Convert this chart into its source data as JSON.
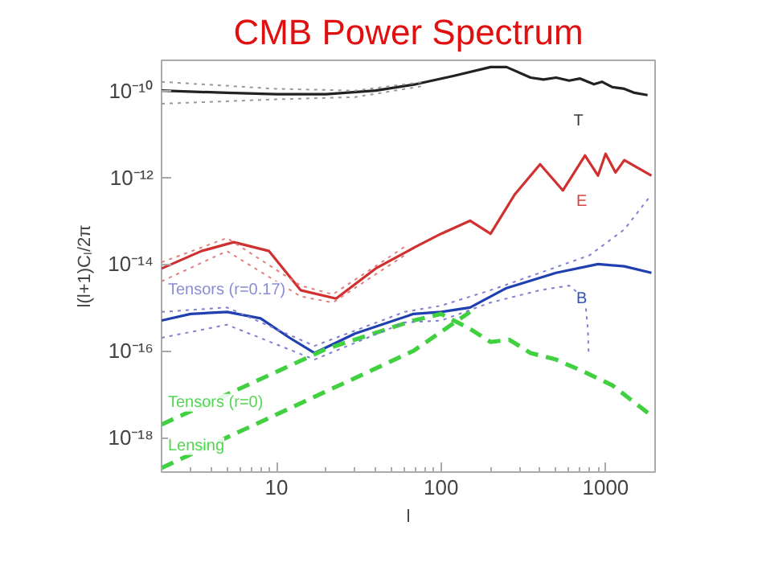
{
  "chart_data": {
    "type": "line",
    "title": "CMB Power Spectrum",
    "xlabel": "l",
    "ylabel": "l(l+1)Cₗ/2π",
    "log": "xy",
    "grid": false,
    "legend": false,
    "xlim": [
      2,
      2000
    ],
    "ylim": [
      1.6e-19,
      5e-10
    ],
    "xticks": [
      10,
      100,
      1000
    ],
    "yticks": [
      {
        "value": 1e-10,
        "label": "10⁻¹⁰"
      },
      {
        "value": 1e-12,
        "label": "10⁻¹²"
      },
      {
        "value": 1e-14,
        "label": "10⁻¹⁴"
      },
      {
        "value": 1e-16,
        "label": "10⁻¹⁶"
      },
      {
        "value": 1e-18,
        "label": "10⁻¹⁸"
      }
    ],
    "series": [
      {
        "name": "T",
        "color": "#222222",
        "line_style": "solid",
        "x": [
          2,
          5,
          10,
          20,
          40,
          70,
          120,
          200,
          250,
          350,
          420,
          500,
          600,
          700,
          850,
          950,
          1100,
          1300,
          1500,
          1800
        ],
        "values": [
          1e-10,
          8.9e-11,
          8.3e-11,
          8.3e-11,
          1e-10,
          1.4e-10,
          2.2e-10,
          3.5e-10,
          3.5e-10,
          2e-10,
          1.8e-10,
          2e-10,
          1.7e-10,
          1.9e-10,
          1.4e-10,
          1.6e-10,
          1.2e-10,
          1.1e-10,
          8.9e-11,
          7.9e-11
        ]
      },
      {
        "name": "E",
        "color": "#d03030",
        "line_style": "solid",
        "x": [
          2,
          3.5,
          5.5,
          9,
          14,
          23,
          40,
          70,
          100,
          150,
          200,
          280,
          400,
          550,
          750,
          900,
          1000,
          1150,
          1300,
          1900
        ],
        "values": [
          7.9e-15,
          2e-14,
          3.2e-14,
          2e-14,
          2.5e-15,
          1.6e-15,
          7.9e-15,
          2.5e-14,
          5e-14,
          1e-13,
          5e-14,
          4e-13,
          2e-12,
          5e-13,
          3.2e-12,
          1.1e-12,
          3.5e-12,
          1.3e-12,
          2.5e-12,
          1.1e-12
        ]
      },
      {
        "name": "B",
        "color": "#2040b0",
        "line_style": "solid",
        "x": [
          2,
          3,
          5,
          8,
          12,
          17,
          30,
          68,
          100,
          150,
          250,
          500,
          900,
          1300,
          1900
        ],
        "values": [
          5e-16,
          7.1e-16,
          7.9e-16,
          5.6e-16,
          2e-16,
          8.9e-17,
          2.5e-16,
          7.1e-16,
          7.9e-16,
          1e-15,
          2.8e-15,
          6.3e-15,
          1e-14,
          8.9e-15,
          6.3e-15
        ]
      },
      {
        "name": "Tensors (r=0)",
        "color": "#40d040",
        "line_style": "dashed",
        "x": [
          2,
          20,
          68,
          100,
          150,
          200,
          260,
          350,
          500,
          750,
          1100,
          1900
        ],
        "values": [
          2e-18,
          1.1e-16,
          5e-16,
          7.1e-16,
          3.2e-16,
          1.6e-16,
          1.8e-16,
          8.9e-17,
          6.3e-17,
          3.2e-17,
          1.6e-17,
          3.2e-18
        ]
      },
      {
        "name": "Lensing",
        "color": "#40d040",
        "line_style": "dashed",
        "x": [
          2,
          68,
          150
        ],
        "values": [
          2e-19,
          1e-16,
          7.9e-16
        ]
      },
      {
        "color": "#999999",
        "line_style": "dotted",
        "x": [
          2,
          10,
          30,
          80
        ],
        "values": [
          1.6e-10,
          1.1e-10,
          1e-10,
          1.6e-10
        ]
      },
      {
        "color": "#999999",
        "line_style": "dotted",
        "x": [
          2,
          10,
          30,
          80
        ],
        "values": [
          5e-11,
          6.3e-11,
          7.1e-11,
          1.3e-10
        ]
      },
      {
        "color": "#e08080",
        "line_style": "dotted",
        "x": [
          2,
          5,
          14,
          22,
          60
        ],
        "values": [
          1.1e-14,
          4e-14,
          3.2e-15,
          2e-15,
          2.5e-14
        ]
      },
      {
        "color": "#e08080",
        "line_style": "dotted",
        "x": [
          2,
          5,
          14,
          22,
          60
        ],
        "values": [
          4e-15,
          2e-14,
          1.8e-15,
          1.3e-15,
          1.6e-14
        ]
      },
      {
        "name": "Tensors (r=0.17)",
        "color": "#8080d0",
        "line_style": "dotted",
        "x": [
          2,
          5,
          17,
          60,
          100,
          200,
          400,
          800,
          1300,
          1900
        ],
        "values": [
          7.9e-16,
          1e-15,
          1.3e-16,
          7.9e-16,
          1.1e-15,
          2.5e-15,
          6.3e-15,
          1.6e-14,
          6.3e-14,
          4e-13
        ]
      },
      {
        "color": "#8080d0",
        "line_style": "dotted",
        "x": [
          2,
          5,
          17,
          60,
          100,
          200,
          400,
          600,
          750,
          780,
          790
        ],
        "values": [
          2e-16,
          4e-16,
          6.3e-17,
          4.5e-16,
          5e-16,
          1.3e-15,
          2.5e-15,
          3.2e-15,
          1.6e-15,
          3.2e-16,
          7.9e-17
        ]
      }
    ]
  }
}
